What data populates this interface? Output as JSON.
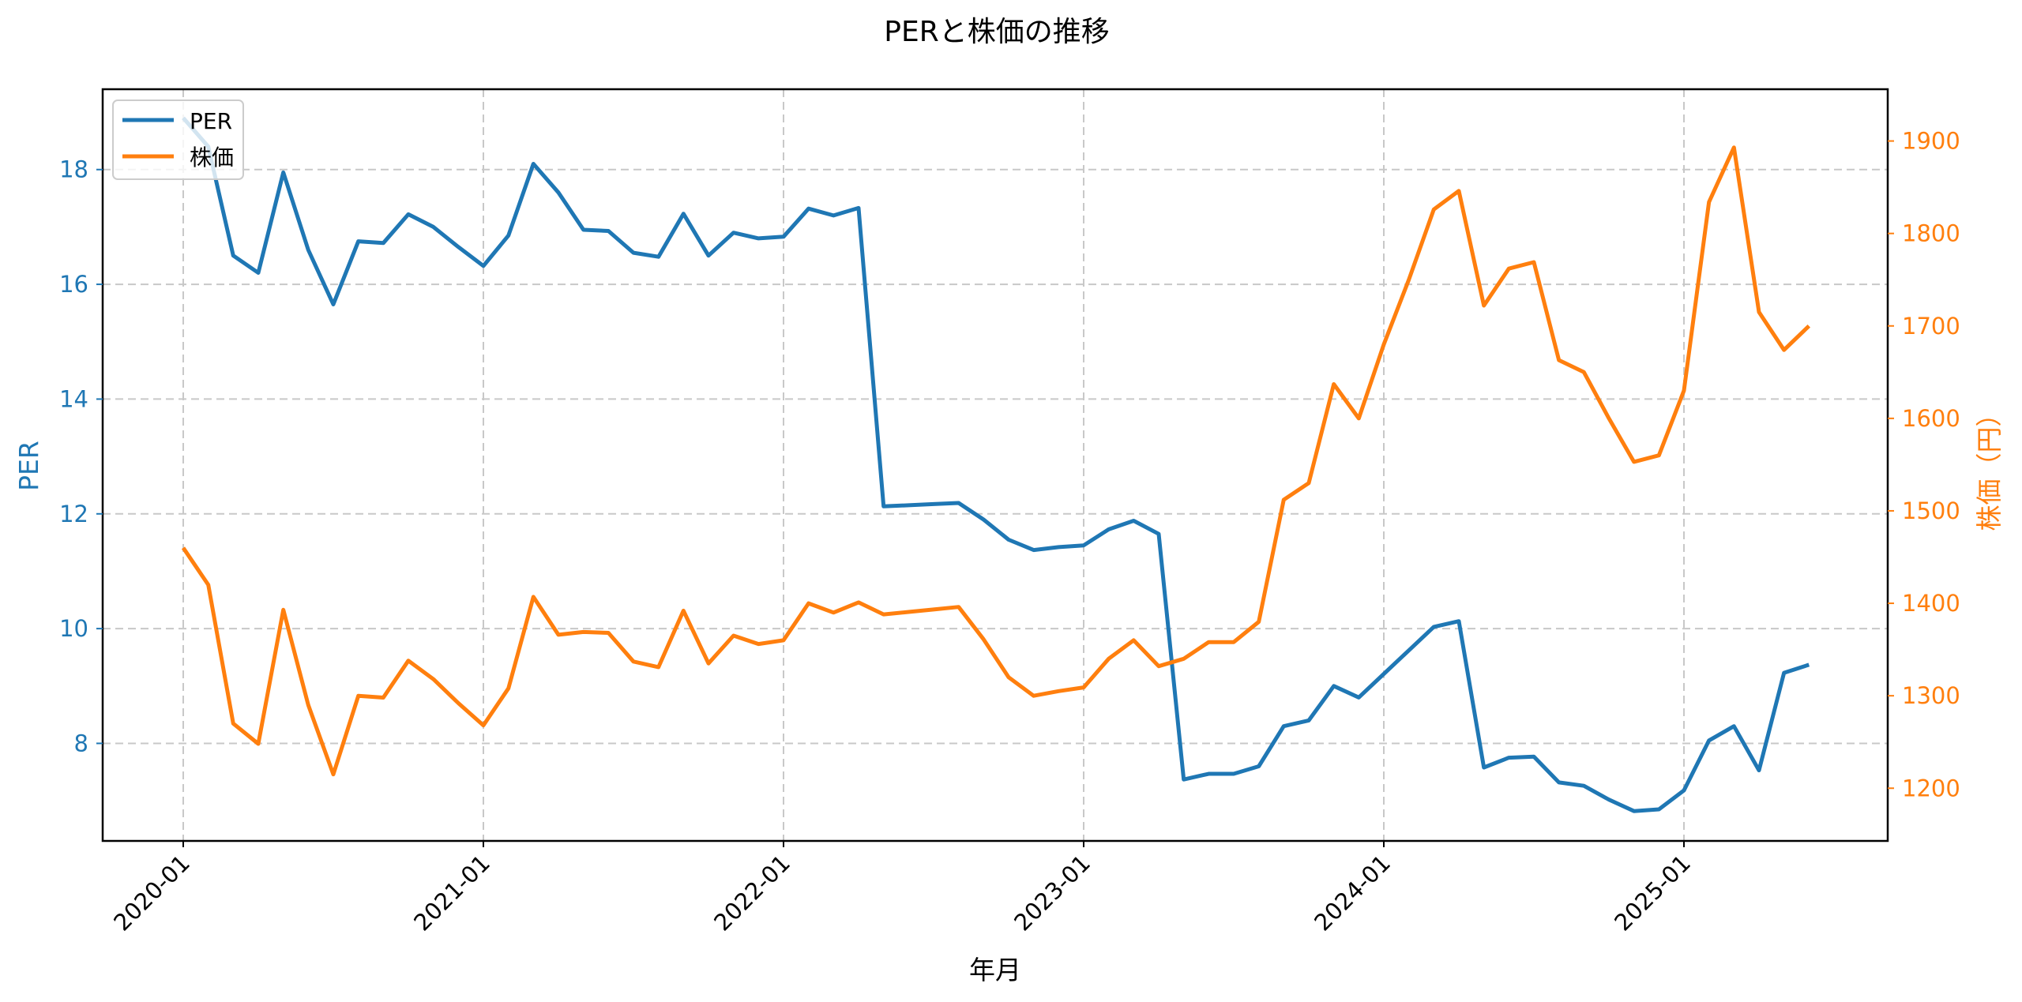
{
  "chart_data": {
    "type": "line",
    "title": "PERと株価の推移",
    "xlabel": "年月",
    "ylabel": "PER",
    "ylabel_right": "株価（円）",
    "x_ticks": [
      "2020-01",
      "2021-01",
      "2022-01",
      "2023-01",
      "2024-01",
      "2025-01"
    ],
    "y_ticks_left": [
      8,
      10,
      12,
      14,
      16,
      18
    ],
    "y_ticks_right": [
      1200,
      1300,
      1400,
      1500,
      1600,
      1700,
      1800,
      1900
    ],
    "ylim_left": [
      6.3,
      19.4
    ],
    "ylim_right": [
      1143,
      1956
    ],
    "grid": true,
    "legend_position": "upper left",
    "colors": {
      "PER": "#1f77b4",
      "株価": "#ff7f0e"
    },
    "x": [
      "2020-01",
      "2020-02",
      "2020-03",
      "2020-04",
      "2020-05",
      "2020-06",
      "2020-07",
      "2020-08",
      "2020-09",
      "2020-10",
      "2020-11",
      "2020-12",
      "2021-01",
      "2021-02",
      "2021-03",
      "2021-04",
      "2021-05",
      "2021-06",
      "2021-07",
      "2021-08",
      "2021-09",
      "2021-10",
      "2021-11",
      "2021-12",
      "2022-01",
      "2022-02",
      "2022-03",
      "2022-04",
      "2022-05",
      "2022-06",
      "2022-07",
      "2022-08",
      "2022-09",
      "2022-10",
      "2022-11",
      "2022-12",
      "2023-01",
      "2023-02",
      "2023-03",
      "2023-04",
      "2023-05",
      "2023-06",
      "2023-07",
      "2023-08",
      "2023-09",
      "2023-10",
      "2023-11",
      "2023-12",
      "2024-01",
      "2024-02",
      "2024-03",
      "2024-04",
      "2024-05",
      "2024-06",
      "2024-07",
      "2024-08",
      "2024-09",
      "2024-10",
      "2024-11",
      "2024-12",
      "2025-01",
      "2025-02",
      "2025-03",
      "2025-04",
      "2025-05",
      "2025-06"
    ],
    "series": [
      {
        "name": "PER",
        "axis": "left",
        "values": [
          18.9,
          18.4,
          16.5,
          16.2,
          17.95,
          16.6,
          15.65,
          16.75,
          16.72,
          17.22,
          17.0,
          16.65,
          16.32,
          16.85,
          18.1,
          17.6,
          16.95,
          16.93,
          16.55,
          16.48,
          17.23,
          16.5,
          16.9,
          16.8,
          16.83,
          17.32,
          17.2,
          17.33,
          12.13,
          null,
          null,
          12.19,
          11.9,
          11.55,
          11.37,
          11.42,
          11.45,
          11.73,
          11.88,
          11.65,
          7.37,
          7.47,
          7.47,
          7.6,
          8.3,
          8.4,
          9.0,
          8.8,
          null,
          null,
          10.03,
          10.13,
          7.58,
          7.75,
          7.77,
          7.32,
          7.26,
          7.02,
          6.82,
          6.85,
          7.18,
          8.05,
          8.3,
          7.53,
          9.23,
          9.37
        ]
      },
      {
        "name": "株価",
        "axis": "right",
        "values": [
          1460,
          1420,
          1270,
          1248,
          1393,
          1290,
          1215,
          1300,
          1298,
          1338,
          1318,
          1292,
          1268,
          1308,
          1407,
          1366,
          1369,
          1368,
          1337,
          1331,
          1392,
          1335,
          1365,
          1356,
          1360,
          1400,
          1390,
          1401,
          1388,
          null,
          null,
          1396,
          1361,
          1320,
          1300,
          1305,
          1309,
          1340,
          1360,
          1332,
          1340,
          1358,
          1358,
          1380,
          1512,
          1530,
          1637,
          1600,
          1680,
          1750,
          1826,
          1846,
          1722,
          1762,
          1769,
          1663,
          1650,
          1600,
          1553,
          1560,
          1630,
          1834,
          1893,
          1715,
          1674,
          1700
        ]
      }
    ]
  }
}
